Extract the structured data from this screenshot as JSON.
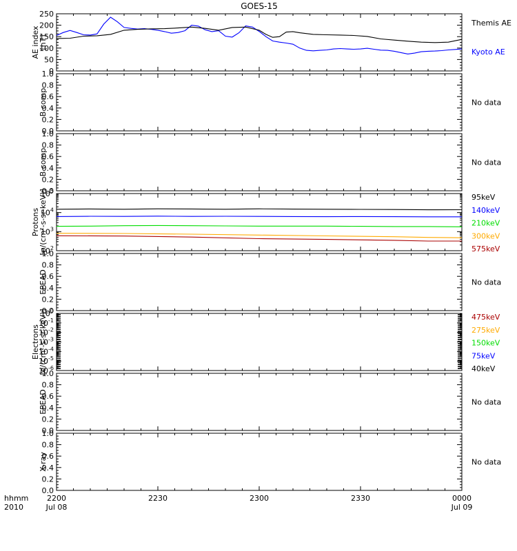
{
  "title": "GOES-15",
  "time_axis": {
    "corner_label_1": "hhmm",
    "corner_label_2": "2010",
    "ticks": [
      {
        "t": 0,
        "label": "2200",
        "date": "Jul 08"
      },
      {
        "t": 30,
        "label": "2230",
        "date": ""
      },
      {
        "t": 60,
        "label": "2300",
        "date": ""
      },
      {
        "t": 90,
        "label": "2330",
        "date": ""
      },
      {
        "t": 120,
        "label": "0000",
        "date": "Jul 09"
      }
    ],
    "range_minutes": [
      0,
      120
    ]
  },
  "colors": {
    "black": "#000000",
    "blue": "#0000ff",
    "green": "#00dd00",
    "orange": "#ffaa00",
    "darkred": "#aa0000"
  },
  "chart_data": [
    {
      "id": "ae",
      "type": "line",
      "ylabel": [
        "AE index",
        "[nT]"
      ],
      "ylim": [
        0,
        250
      ],
      "yticks": [
        "0",
        "50",
        "100",
        "150",
        "200",
        "250"
      ],
      "series": [
        {
          "name": "Kyoto AE",
          "color": "#0000ff",
          "x": [
            0,
            2,
            4,
            6,
            8,
            10,
            12,
            14,
            16,
            18,
            20,
            22,
            24,
            26,
            28,
            30,
            32,
            34,
            36,
            38,
            40,
            42,
            44,
            46,
            48,
            50,
            52,
            54,
            56,
            58,
            60,
            62,
            64,
            66,
            68,
            70,
            72,
            74,
            76,
            78,
            80,
            82,
            84,
            86,
            88,
            90,
            92,
            94,
            96,
            98,
            100,
            102,
            104,
            106,
            108,
            110,
            112,
            114,
            116,
            118,
            120
          ],
          "y": [
            155,
            168,
            177,
            168,
            158,
            157,
            162,
            205,
            235,
            215,
            190,
            186,
            183,
            185,
            182,
            178,
            172,
            165,
            168,
            176,
            200,
            196,
            180,
            172,
            176,
            152,
            148,
            167,
            197,
            192,
            173,
            150,
            131,
            126,
            122,
            117,
            100,
            90,
            88,
            90,
            92,
            96,
            98,
            96,
            95,
            96,
            99,
            95,
            91,
            90,
            86,
            80,
            74,
            78,
            84,
            86,
            87,
            89,
            92,
            94,
            96
          ]
        },
        {
          "name": "Themis AE",
          "color": "#000000",
          "x": [
            0,
            4,
            8,
            12,
            16,
            20,
            24,
            28,
            32,
            36,
            40,
            44,
            48,
            52,
            56,
            60,
            62,
            64,
            66,
            68,
            70,
            72,
            76,
            80,
            84,
            88,
            92,
            96,
            100,
            104,
            108,
            112,
            116,
            120
          ],
          "y": [
            142,
            143,
            152,
            154,
            160,
            178,
            182,
            184,
            185,
            188,
            192,
            186,
            178,
            190,
            192,
            178,
            160,
            147,
            150,
            170,
            172,
            167,
            160,
            158,
            157,
            155,
            151,
            140,
            135,
            130,
            126,
            124,
            126,
            138
          ]
        }
      ]
    },
    {
      "id": "bcomp1",
      "type": "line",
      "ylabel": [
        "B comp"
      ],
      "ylim": [
        0,
        1
      ],
      "yticks": [
        "0.0",
        "0.2",
        "0.4",
        "0.6",
        "0.8",
        "1.0"
      ],
      "nodata": "No data",
      "series": []
    },
    {
      "id": "bcomp2",
      "type": "line",
      "ylabel": [
        "B comp"
      ],
      "ylim": [
        0,
        1
      ],
      "yticks": [
        "0.0",
        "0.2",
        "0.4",
        "0.6",
        "0.8",
        "1.0"
      ],
      "nodata": "No data",
      "series": []
    },
    {
      "id": "protons",
      "type": "line",
      "log": true,
      "ylabel": [
        "Protons",
        "[p/(cm²-s-sr-keV)]"
      ],
      "ylim": [
        100,
        100000
      ],
      "decades": [
        2,
        3,
        4,
        5
      ],
      "series": [
        {
          "name": "575keV",
          "color": "#aa0000",
          "x": [
            0,
            20,
            40,
            60,
            80,
            100,
            110,
            120
          ],
          "y": [
            610,
            590,
            520,
            430,
            390,
            350,
            320,
            320
          ]
        },
        {
          "name": "300keV",
          "color": "#ffaa00",
          "x": [
            0,
            20,
            40,
            60,
            80,
            100,
            110,
            120
          ],
          "y": [
            820,
            800,
            740,
            660,
            600,
            540,
            500,
            480
          ]
        },
        {
          "name": "210keV",
          "color": "#00dd00",
          "x": [
            0,
            10,
            20,
            30,
            40,
            50,
            60,
            70,
            80,
            90,
            100,
            110,
            120
          ],
          "y": [
            1900,
            1950,
            2050,
            2100,
            2050,
            2000,
            1950,
            1950,
            1950,
            1900,
            1850,
            1850,
            1800
          ]
        },
        {
          "name": "140keV",
          "color": "#0000ff",
          "x": [
            0,
            10,
            20,
            30,
            40,
            50,
            60,
            70,
            80,
            90,
            100,
            110,
            120
          ],
          "y": [
            6200,
            6400,
            6300,
            6500,
            6300,
            6400,
            6300,
            6200,
            6100,
            6200,
            6100,
            6000,
            6000
          ]
        },
        {
          "name": "95keV",
          "color": "#000000",
          "x": [
            0,
            10,
            20,
            30,
            40,
            50,
            60,
            70,
            80,
            90,
            100,
            110,
            120
          ],
          "y": [
            15000,
            15500,
            15000,
            15800,
            15500,
            15000,
            15800,
            15200,
            15000,
            14800,
            14500,
            14000,
            14200
          ]
        }
      ]
    },
    {
      "id": "epead1",
      "type": "line",
      "ylabel": [
        "EPEAD"
      ],
      "ylim": [
        0,
        1
      ],
      "yticks": [
        "0.0",
        "0.2",
        "0.4",
        "0.6",
        "0.8",
        "1.0"
      ],
      "nodata": "No data",
      "series": []
    },
    {
      "id": "electrons",
      "type": "line",
      "log": true,
      "ylabel": [
        "Electrons",
        "[e/(cm²-s-sr-keV)]"
      ],
      "ylim": [
        1e-06,
        1
      ],
      "decades": [
        -6,
        -5,
        -4,
        -3,
        -2,
        -1,
        0
      ],
      "series": [],
      "legend": [
        {
          "name": "475keV",
          "color": "#aa0000"
        },
        {
          "name": "275keV",
          "color": "#ffaa00"
        },
        {
          "name": "150keV",
          "color": "#00dd00"
        },
        {
          "name": "75keV",
          "color": "#0000ff"
        },
        {
          "name": "40keV",
          "color": "#000000"
        }
      ]
    },
    {
      "id": "epead2",
      "type": "line",
      "ylabel": [
        "EPEAD"
      ],
      "ylim": [
        0,
        1
      ],
      "yticks": [
        "0.0",
        "0.2",
        "0.4",
        "0.6",
        "0.8",
        "1.0"
      ],
      "nodata": "No data",
      "series": []
    },
    {
      "id": "xray",
      "type": "line",
      "ylabel": [
        "X-ray"
      ],
      "ylim": [
        0,
        1
      ],
      "yticks": [
        "0.0",
        "0.2",
        "0.4",
        "0.6",
        "0.8",
        "1.0"
      ],
      "nodata": "No data",
      "series": []
    }
  ]
}
